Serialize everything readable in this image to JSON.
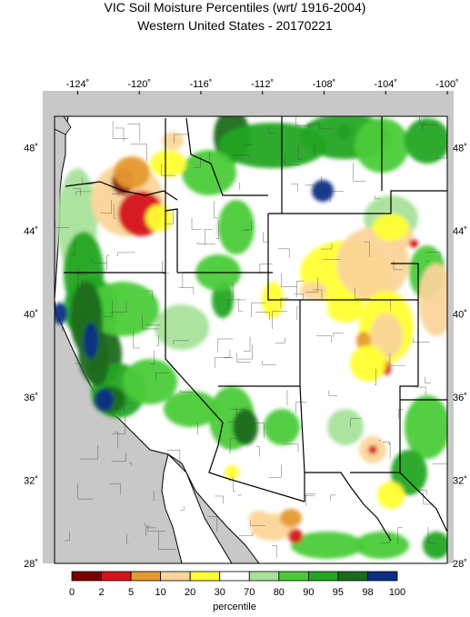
{
  "title": {
    "line1": "VIC Soil Moisture Percentiles (wrt/ 1916-2004)",
    "line2": "Western United States - 20170221"
  },
  "axes": {
    "lon_ticks": [
      "-124˚",
      "-120˚",
      "-116˚",
      "-112˚",
      "-108˚",
      "-104˚",
      "-100˚"
    ],
    "lat_ticks": [
      "48˚",
      "44˚",
      "40˚",
      "36˚",
      "32˚",
      "28˚"
    ],
    "lon_range": [
      -125.5,
      -100
    ],
    "lat_range": [
      28,
      49.5
    ]
  },
  "colorbar": {
    "title": "percentile",
    "breaks": [
      "0",
      "2",
      "5",
      "10",
      "20",
      "30",
      "70",
      "80",
      "90",
      "95",
      "98",
      "100"
    ],
    "colors": [
      "#7a0000",
      "#d4141b",
      "#e59a2f",
      "#fbd59a",
      "#ffff33",
      "#ffffff",
      "#a8e29a",
      "#4bcb3a",
      "#24a623",
      "#1b6b1e",
      "#0b2f86"
    ]
  },
  "colors": {
    "ocean": "#c8c8c8",
    "land_background": "#ffffff",
    "state_border": "#000000",
    "county_border": "#555555"
  }
}
